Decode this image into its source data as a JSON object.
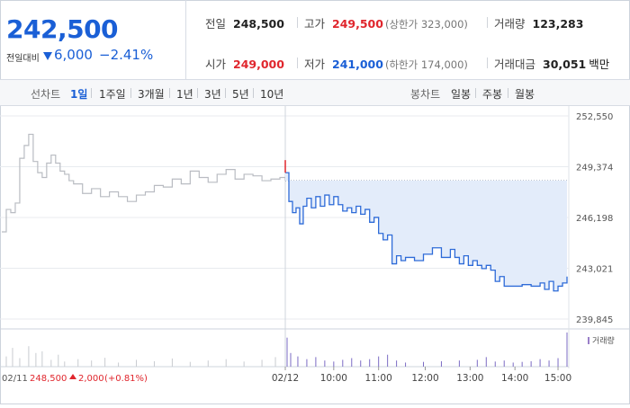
{
  "header": {
    "price": "242,500",
    "change_label": "전일대비",
    "change_amount": "6,000",
    "change_rate": "−2.41%",
    "colors": {
      "down": "#1a5fd6",
      "up": "#e0262d"
    },
    "stats": {
      "prev": {
        "label": "전일",
        "value": "248,500"
      },
      "high": {
        "label": "고가",
        "value": "249,500",
        "sub": "(상한가 323,000)"
      },
      "volume": {
        "label": "거래량",
        "value": "123,283"
      },
      "open": {
        "label": "시가",
        "value": "249,000"
      },
      "low": {
        "label": "저가",
        "value": "241,000",
        "sub": "(하한가 174,000)"
      },
      "amount": {
        "label": "거래대금",
        "value": "30,051",
        "unit": "백만"
      }
    }
  },
  "toolbar": {
    "line_label": "선차트",
    "periods": [
      "1일",
      "1주일",
      "3개월",
      "1년",
      "3년",
      "5년",
      "10년"
    ],
    "active_period": "1일",
    "candle_label": "봉차트",
    "candle_periods": [
      "일봉",
      "주봉",
      "월봉"
    ]
  },
  "chart_data": {
    "type": "line",
    "y_ticks": [
      "252,550",
      "249,374",
      "246,198",
      "243,021",
      "239,845"
    ],
    "ylim": [
      239845,
      252550
    ],
    "x_ticks": [
      "02/12",
      "10:00",
      "11:00",
      "12:00",
      "13:00",
      "14:00",
      "15:00"
    ],
    "prev_day_label": "02/11",
    "prev_close": "248,500",
    "prev_change": "2,000",
    "prev_change_rate": "(+0.81%)",
    "volume_legend": "거래량",
    "reference_price": 248500,
    "prev_day_series": {
      "x": [
        0,
        5,
        10,
        15,
        20,
        25,
        30,
        35,
        40,
        45,
        50,
        55,
        60,
        65,
        70,
        75,
        80,
        90,
        100,
        110,
        120,
        130,
        140,
        150,
        160,
        170,
        180,
        190,
        200,
        210,
        220,
        230,
        240,
        250,
        260,
        270,
        280,
        290,
        300,
        310,
        316
      ],
      "y": [
        245300,
        246700,
        246500,
        247100,
        249900,
        250700,
        251400,
        249700,
        249000,
        248700,
        249600,
        250100,
        249600,
        249100,
        248900,
        248500,
        248300,
        247700,
        248000,
        247500,
        247800,
        247500,
        247200,
        247600,
        247800,
        248200,
        248100,
        248600,
        248300,
        249100,
        248700,
        248400,
        248900,
        249200,
        248600,
        248900,
        248800,
        248500,
        248600,
        248700,
        248500
      ]
    },
    "today_series": {
      "x": [
        316,
        320,
        324,
        328,
        332,
        336,
        340,
        345,
        350,
        355,
        360,
        365,
        370,
        375,
        380,
        385,
        390,
        395,
        400,
        405,
        410,
        415,
        420,
        425,
        430,
        435,
        440,
        445,
        450,
        460,
        470,
        480,
        490,
        500,
        505,
        510,
        515,
        520,
        525,
        530,
        535,
        540,
        545,
        550,
        555,
        560,
        570,
        580,
        590,
        600,
        605,
        610,
        615,
        620,
        625,
        630
      ],
      "y": [
        249000,
        247200,
        246500,
        246800,
        245800,
        246900,
        247400,
        246800,
        247500,
        246900,
        247600,
        247000,
        247500,
        247000,
        246600,
        246800,
        246500,
        246900,
        246400,
        246700,
        245900,
        246200,
        245200,
        244800,
        245100,
        243300,
        243800,
        243500,
        243700,
        243500,
        243900,
        244300,
        243700,
        244200,
        243700,
        243300,
        243800,
        243200,
        243500,
        243200,
        243000,
        243200,
        242900,
        242200,
        242500,
        241900,
        241900,
        242000,
        241900,
        242100,
        241700,
        242200,
        241600,
        241900,
        242100,
        242500
      ]
    },
    "volume": {
      "prev_day": {
        "x": [
          5,
          12,
          20,
          30,
          38,
          45,
          55,
          63,
          70,
          85,
          100,
          115,
          130,
          150,
          170,
          190,
          210,
          230,
          250,
          270,
          290,
          305
        ],
        "v": [
          30,
          55,
          25,
          60,
          40,
          45,
          20,
          35,
          15,
          22,
          18,
          26,
          12,
          20,
          16,
          24,
          14,
          18,
          22,
          15,
          20,
          28
        ]
      },
      "today": {
        "x": [
          318,
          322,
          330,
          340,
          350,
          360,
          370,
          380,
          390,
          400,
          410,
          420,
          430,
          440,
          450,
          470,
          490,
          510,
          530,
          540,
          550,
          560,
          570,
          580,
          590,
          600,
          610,
          620,
          630
        ],
        "v": [
          85,
          40,
          30,
          22,
          28,
          18,
          15,
          20,
          25,
          18,
          22,
          30,
          35,
          18,
          12,
          14,
          16,
          18,
          20,
          28,
          15,
          18,
          12,
          14,
          16,
          22,
          18,
          25,
          100
        ]
      }
    }
  }
}
